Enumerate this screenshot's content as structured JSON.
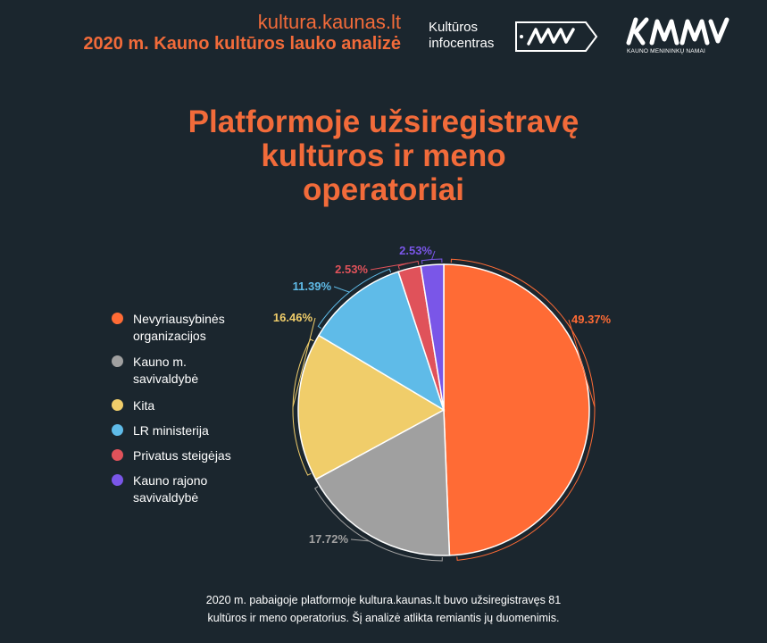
{
  "header": {
    "site": "kultura.kaunas.lt",
    "title": "2020 m. Kauno kultūros lauko analizė"
  },
  "logo_infocentras": {
    "line1": "Kultūros",
    "line2": "infocentras"
  },
  "logo_kmn": {
    "caption": "KAUNO MENININKŲ NAMAI"
  },
  "main_title": {
    "line1": "Platformoje užsiregistravę",
    "line2": "kultūros ir meno",
    "line3": "operatoriai"
  },
  "footer": {
    "line1": "2020 m. pabaigoje platformoje kultura.kaunas.lt buvo užsiregistravęs 81",
    "line2": "kultūros ir meno operatorius. Šį analizė atlikta remiantis jų duomenimis."
  },
  "colors": {
    "background": "#1b262e",
    "accent": "#f26b3a"
  },
  "chart_data": {
    "type": "pie",
    "title": "Platformoje užsiregistravę kultūros ir meno operatoriai",
    "legend_position": "left",
    "slices": [
      {
        "name": "Nevyriausybinės organizacijos",
        "name_lines": [
          "Nevyriausybinės",
          "organizacijos"
        ],
        "value": 49.37,
        "label": "49.37%",
        "color": "#ff6b35"
      },
      {
        "name": "Kauno m. savivaldybė",
        "name_lines": [
          "Kauno m.",
          "savivaldybė"
        ],
        "value": 17.72,
        "label": "17.72%",
        "color": "#a0a0a0"
      },
      {
        "name": "Kita",
        "name_lines": [
          "Kita"
        ],
        "value": 16.46,
        "label": "16.46%",
        "color": "#f0cd6a"
      },
      {
        "name": "LR ministerija",
        "name_lines": [
          "LR ministerija"
        ],
        "value": 11.39,
        "label": "11.39%",
        "color": "#5fbbe8"
      },
      {
        "name": "Privatus steigėjas",
        "name_lines": [
          "Privatus steigėjas"
        ],
        "value": 2.53,
        "label": "2.53%",
        "color": "#e0525a"
      },
      {
        "name": "Kauno rajono savivaldybė",
        "name_lines": [
          "Kauno rajono",
          "savivaldybė"
        ],
        "value": 2.53,
        "label": "2.53%",
        "color": "#7a56e8"
      }
    ]
  }
}
